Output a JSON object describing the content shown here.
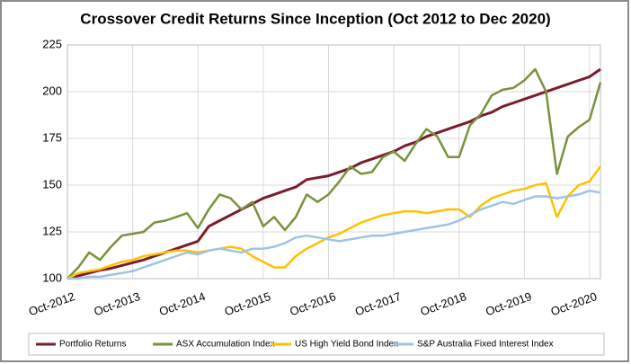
{
  "chart_data": {
    "type": "line",
    "title": "Crossover Credit Returns Since Inception (Oct 2012 to Dec 2020)",
    "categories": [
      "Oct-2012",
      null,
      null,
      null,
      null,
      null,
      "Oct-2013",
      null,
      null,
      null,
      null,
      null,
      "Oct-2014",
      null,
      null,
      null,
      null,
      null,
      "Oct-2015",
      null,
      null,
      null,
      null,
      null,
      "Oct-2016",
      null,
      null,
      null,
      null,
      null,
      "Oct-2017",
      null,
      null,
      null,
      null,
      null,
      "Oct-2018",
      null,
      null,
      null,
      null,
      null,
      "Oct-2019",
      null,
      null,
      null,
      null,
      null,
      "Oct-2020",
      null
    ],
    "ylim": [
      100,
      225
    ],
    "yticks": [
      100,
      125,
      150,
      175,
      200,
      225
    ],
    "grid": true,
    "series": [
      {
        "name": "Portfolio Returns",
        "color": "#7b1c2c",
        "values": [
          100,
          101.5,
          103,
          104.5,
          105.5,
          107,
          108.5,
          110,
          112,
          114,
          116,
          118,
          120,
          128,
          131,
          134,
          137,
          140,
          143,
          145,
          147,
          149,
          153,
          154,
          155,
          157,
          159,
          162,
          164,
          166,
          168,
          171,
          173,
          176,
          178,
          180,
          182,
          184,
          187,
          189,
          192,
          194,
          196,
          198,
          200,
          202,
          204,
          206,
          208,
          212
        ]
      },
      {
        "name": "ASX Accumulation Index",
        "color": "#77933c",
        "values": [
          100,
          106,
          114,
          110,
          117,
          123,
          124,
          125,
          130,
          131,
          133,
          135,
          127,
          137,
          145,
          143,
          137,
          141,
          128,
          133,
          126,
          133,
          145,
          141,
          145,
          152,
          160,
          156,
          157,
          165,
          168,
          163,
          172,
          180,
          176,
          165,
          165,
          182,
          188,
          198,
          201,
          202,
          206,
          212,
          200,
          156,
          176,
          181,
          185,
          205
        ]
      },
      {
        "name": "US High Yield Bond Index",
        "color": "#ffc000",
        "values": [
          100,
          103,
          104,
          105,
          107,
          109,
          110,
          112,
          113,
          114,
          115,
          115,
          114,
          115,
          116,
          117,
          116,
          112,
          109,
          106,
          106,
          112,
          116,
          119,
          122,
          124,
          127,
          130,
          132,
          134,
          135,
          136,
          136,
          135,
          136,
          137,
          137,
          133,
          139,
          143,
          145,
          147,
          148,
          150,
          151,
          133,
          144,
          150,
          152,
          160
        ]
      },
      {
        "name": "S&P Australia Fixed Interest Index",
        "color": "#9dc3e6",
        "values": [
          100,
          100,
          101,
          101,
          102,
          103,
          104,
          106,
          108,
          110,
          112,
          114,
          113,
          115,
          116,
          115,
          114,
          116,
          116,
          117,
          119,
          122,
          123,
          122,
          121,
          120,
          121,
          122,
          123,
          123,
          124,
          125,
          126,
          127,
          128,
          129,
          131,
          134,
          137,
          139,
          141,
          140,
          142,
          144,
          144,
          143,
          144,
          145,
          147,
          146
        ]
      }
    ]
  }
}
